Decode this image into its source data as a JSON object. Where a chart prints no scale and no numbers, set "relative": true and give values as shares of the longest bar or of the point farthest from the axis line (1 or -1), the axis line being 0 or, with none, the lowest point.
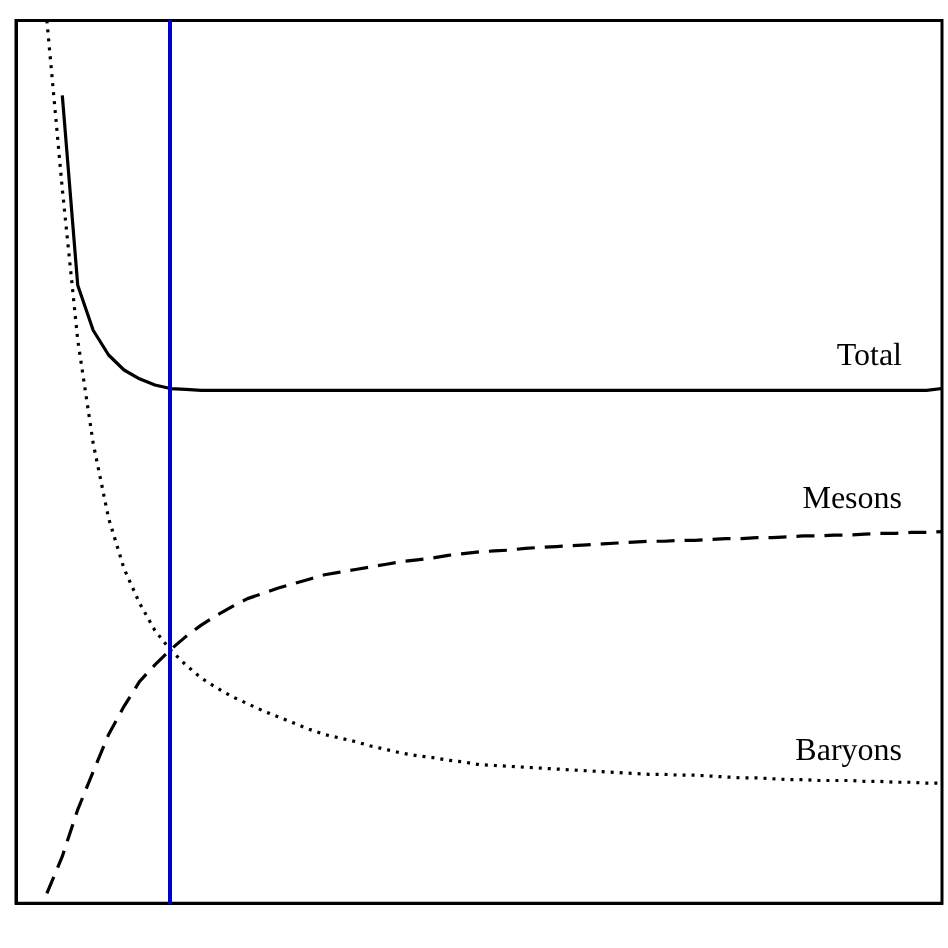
{
  "chart_data": {
    "type": "line",
    "relative": true,
    "grid": false,
    "legend": false,
    "marker": "none",
    "categories": [
      null,
      null,
      null,
      null,
      null,
      null,
      null,
      null,
      null,
      null,
      null,
      null,
      null,
      null,
      null,
      null,
      null,
      null,
      null,
      null,
      null,
      null,
      null,
      null,
      null,
      null,
      null,
      null,
      null,
      null,
      null,
      null,
      null,
      null,
      null,
      null,
      null,
      null,
      null,
      null,
      null,
      null,
      null,
      null,
      null,
      null,
      null,
      null,
      null,
      null,
      null,
      null,
      null,
      null,
      null,
      null,
      null,
      null,
      null,
      null,
      null
    ],
    "series": [
      {
        "name": "Total",
        "color": "#000000",
        "line_style": "solid",
        "values": [
          null,
          null,
          null,
          0.915,
          0.7,
          0.649,
          0.621,
          0.604,
          0.594,
          0.587,
          0.583,
          0.582,
          0.581,
          0.581,
          0.581,
          0.581,
          0.581,
          0.581,
          0.581,
          0.581,
          0.581,
          0.581,
          0.581,
          0.581,
          0.581,
          0.581,
          0.581,
          0.581,
          0.581,
          0.581,
          0.581,
          0.581,
          0.581,
          0.581,
          0.581,
          0.581,
          0.581,
          0.581,
          0.581,
          0.581,
          0.581,
          0.581,
          0.581,
          0.581,
          0.581,
          0.581,
          0.581,
          0.581,
          0.581,
          0.581,
          0.581,
          0.581,
          0.581,
          0.581,
          0.581,
          0.581,
          0.581,
          0.581,
          0.581,
          0.581,
          0.583
        ]
      },
      {
        "name": "Mesons",
        "color": "#000000",
        "line_style": "dashed",
        "values": [
          null,
          null,
          0.011,
          0.053,
          0.106,
          0.149,
          0.191,
          0.223,
          0.251,
          0.27,
          0.287,
          0.302,
          0.315,
          0.326,
          0.336,
          0.345,
          0.351,
          0.357,
          0.362,
          0.367,
          0.372,
          0.375,
          0.378,
          0.381,
          0.384,
          0.387,
          0.389,
          0.391,
          0.394,
          0.396,
          0.398,
          0.399,
          0.4,
          0.402,
          0.403,
          0.404,
          0.405,
          0.406,
          0.407,
          0.408,
          0.409,
          0.41,
          0.41,
          0.411,
          0.411,
          0.412,
          0.413,
          0.413,
          0.414,
          0.414,
          0.415,
          0.416,
          0.416,
          0.417,
          0.417,
          0.418,
          0.419,
          0.419,
          0.42,
          0.42,
          0.421
        ]
      },
      {
        "name": "Baryons",
        "color": "#000000",
        "line_style": "dotted",
        "values": [
          null,
          null,
          1.0,
          0.809,
          0.638,
          0.521,
          0.436,
          0.379,
          0.34,
          0.309,
          0.287,
          0.27,
          0.255,
          0.244,
          0.234,
          0.226,
          0.218,
          0.211,
          0.204,
          0.197,
          0.191,
          0.187,
          0.183,
          0.178,
          0.174,
          0.17,
          0.167,
          0.165,
          0.162,
          0.16,
          0.157,
          0.156,
          0.155,
          0.154,
          0.153,
          0.152,
          0.151,
          0.15,
          0.149,
          0.148,
          0.147,
          0.146,
          0.146,
          0.145,
          0.145,
          0.144,
          0.143,
          0.142,
          0.142,
          0.141,
          0.14,
          0.14,
          0.139,
          0.139,
          0.139,
          0.138,
          0.138,
          0.137,
          0.137,
          0.136,
          0.136
        ]
      }
    ]
  }
}
